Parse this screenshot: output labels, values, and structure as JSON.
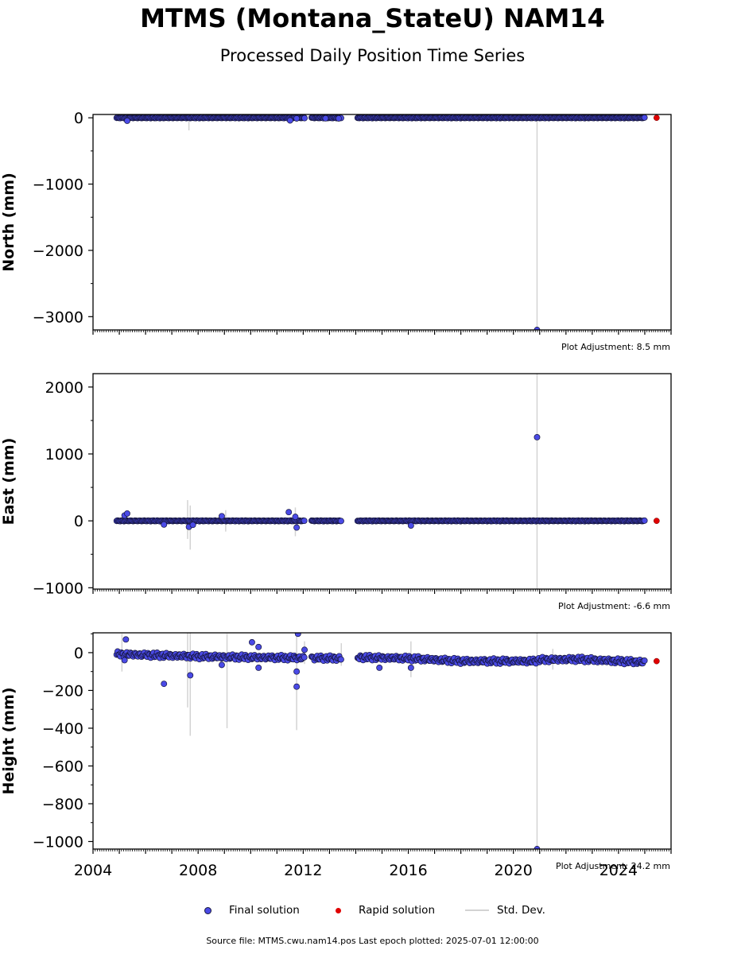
{
  "title": "MTMS (Montana_StateU) NAM14",
  "subtitle": "Processed Daily Position Time Series",
  "colors": {
    "final": "#4a4ae6",
    "final_edge": "#15153d",
    "rapid": "#e00000",
    "std": "#d3d3d3"
  },
  "legend": {
    "final": "Final solution",
    "rapid": "Rapid solution",
    "std": "Std. Dev."
  },
  "footer": "Source file: MTMS.cwu.nam14.pos  Last epoch plotted: 2025-07-01 12:00:00",
  "chart_data": {
    "type": "scatter",
    "x_axis": {
      "range": [
        2004.0,
        2026.0
      ],
      "ticks": [
        2004,
        2008,
        2012,
        2016,
        2020,
        2024
      ],
      "tick_labels": [
        "2004",
        "2008",
        "2012",
        "2016",
        "2020",
        "2024"
      ],
      "minor": "monthly"
    },
    "gaps": [
      [
        2012.05,
        2012.3
      ],
      [
        2013.45,
        2014.05
      ]
    ],
    "panels": [
      {
        "key": "north",
        "ylabel": "North (mm)",
        "ylim": [
          -3200,
          50
        ],
        "yticks": [
          0,
          -1000,
          -2000,
          -3000
        ],
        "ytick_labels": [
          "0",
          "−1000",
          "−2000",
          "−3000"
        ],
        "adjustment": "Plot Adjustment: 8.5 mm",
        "trend": [
          [
            2004.9,
            0
          ],
          [
            2025.0,
            0
          ]
        ],
        "outliers": [
          [
            2005.3,
            -45
          ],
          [
            2011.5,
            -40
          ],
          [
            2011.75,
            -10
          ],
          [
            2012.05,
            -5
          ],
          [
            2012.85,
            -8
          ],
          [
            2013.35,
            -10
          ],
          [
            2020.9,
            -3200
          ]
        ],
        "std_devs": [
          [
            2007.65,
            -190,
            20
          ],
          [
            2020.9,
            -3200,
            0
          ]
        ],
        "rapid": [
          [
            2025.45,
            0
          ]
        ]
      },
      {
        "key": "east",
        "ylabel": "East (mm)",
        "ylim": [
          -1020,
          2200
        ],
        "yticks": [
          2000,
          1000,
          0,
          -1000
        ],
        "ytick_labels": [
          "2000",
          "1000",
          "0",
          "−1000"
        ],
        "adjustment": "Plot Adjustment: -6.6 mm",
        "trend": [
          [
            2004.9,
            0
          ],
          [
            2025.0,
            0
          ]
        ],
        "outliers": [
          [
            2005.2,
            80
          ],
          [
            2005.3,
            110
          ],
          [
            2006.7,
            -55
          ],
          [
            2007.65,
            -90
          ],
          [
            2007.8,
            -60
          ],
          [
            2008.9,
            70
          ],
          [
            2011.45,
            130
          ],
          [
            2011.75,
            -100
          ],
          [
            2011.7,
            60
          ],
          [
            2016.1,
            -70
          ],
          [
            2020.9,
            1250
          ]
        ],
        "std_devs": [
          [
            2007.6,
            -270,
            310
          ],
          [
            2007.7,
            -430,
            230
          ],
          [
            2009.05,
            -160,
            160
          ],
          [
            2011.7,
            -230,
            200
          ],
          [
            2020.9,
            -1020,
            2200
          ]
        ],
        "rapid": [
          [
            2025.45,
            0
          ]
        ]
      },
      {
        "key": "height",
        "ylabel": "Height (mm)",
        "ylim": [
          -1040,
          105
        ],
        "yticks": [
          0,
          -200,
          -400,
          -600,
          -800,
          -1000
        ],
        "ytick_labels": [
          "0",
          "−200",
          "−400",
          "−600",
          "−800",
          "−1000"
        ],
        "adjustment": "Plot Adjustment: 24.2 mm",
        "trend": [
          [
            2004.9,
            -8
          ],
          [
            2008.0,
            -20
          ],
          [
            2010.0,
            -25
          ],
          [
            2013.4,
            -30
          ],
          [
            2014.05,
            -25
          ],
          [
            2016.0,
            -30
          ],
          [
            2018.0,
            -45
          ],
          [
            2020.8,
            -45
          ],
          [
            2021.0,
            -38
          ],
          [
            2022.5,
            -35
          ],
          [
            2024.0,
            -45
          ],
          [
            2025.0,
            -50
          ]
        ],
        "outliers": [
          [
            2005.25,
            70
          ],
          [
            2005.2,
            -40
          ],
          [
            2006.7,
            -165
          ],
          [
            2007.7,
            -120
          ],
          [
            2008.9,
            -65
          ],
          [
            2010.05,
            55
          ],
          [
            2010.3,
            -80
          ],
          [
            2010.3,
            30
          ],
          [
            2011.8,
            100
          ],
          [
            2011.75,
            -100
          ],
          [
            2011.75,
            -180
          ],
          [
            2012.05,
            15
          ],
          [
            2014.9,
            -80
          ],
          [
            2016.1,
            -80
          ],
          [
            2020.9,
            -1040
          ]
        ],
        "std_devs": [
          [
            2005.1,
            -100,
            100
          ],
          [
            2007.6,
            -290,
            105
          ],
          [
            2007.7,
            -440,
            105
          ],
          [
            2009.1,
            -400,
            100
          ],
          [
            2011.75,
            -410,
            100
          ],
          [
            2012.05,
            -60,
            60
          ],
          [
            2013.45,
            -70,
            50
          ],
          [
            2016.1,
            -130,
            60
          ],
          [
            2020.9,
            -1040,
            105
          ],
          [
            2021.5,
            -90,
            20
          ]
        ],
        "rapid": [
          [
            2025.45,
            -45
          ]
        ]
      }
    ]
  }
}
